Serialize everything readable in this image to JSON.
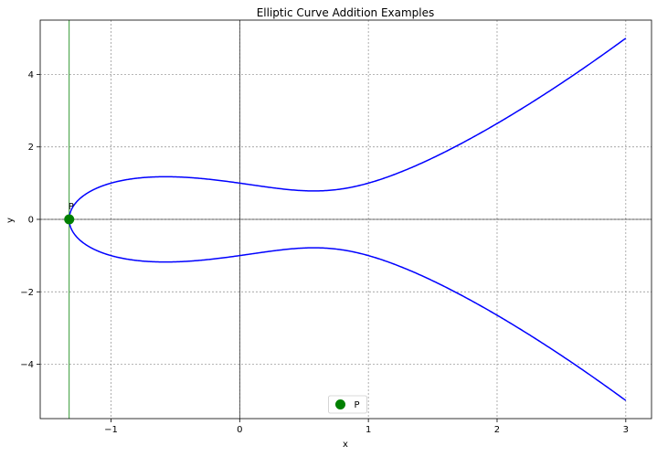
{
  "chart_data": {
    "type": "line",
    "title": "Elliptic Curve Addition Examples",
    "xlabel": "x",
    "ylabel": "y",
    "xlim": [
      -1.55,
      3.2
    ],
    "ylim": [
      -5.5,
      5.5
    ],
    "xticks": [
      -1,
      0,
      1,
      2,
      3
    ],
    "xtick_labels": [
      "−1",
      "0",
      "1",
      "2",
      "3"
    ],
    "yticks": [
      -4,
      -2,
      0,
      2,
      4
    ],
    "ytick_labels": [
      "−4",
      "−2",
      "0",
      "2",
      "4"
    ],
    "grid": true,
    "curve": {
      "equation_params": {
        "a": -1,
        "b": 1
      },
      "x_start": -1.3247,
      "x_end": 3,
      "color": "#0000ff"
    },
    "series": [
      {
        "name": "P",
        "marker": "circle",
        "color": "#008000",
        "points": [
          {
            "x": -1.3247,
            "y": 0
          }
        ],
        "label": "P"
      }
    ],
    "vertical_line": {
      "x": -1.3247,
      "color": "#008000"
    },
    "axis_lines": {
      "x0": 0,
      "y0": 0,
      "color": "#000000"
    },
    "legend": {
      "placement": "lower center",
      "entries": [
        {
          "label": "P",
          "marker": "circle",
          "color": "#008000"
        }
      ]
    }
  }
}
